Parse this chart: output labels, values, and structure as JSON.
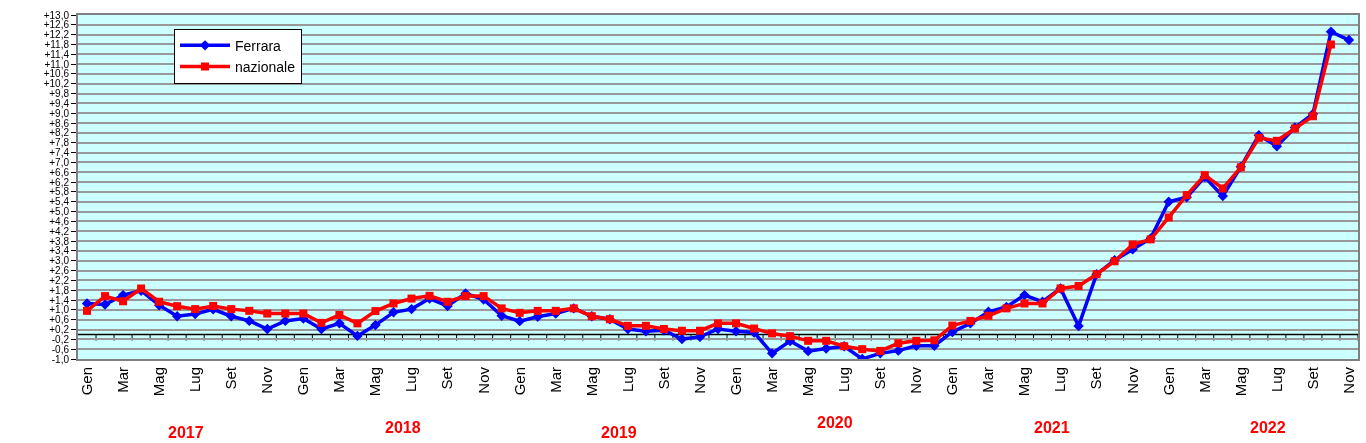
{
  "chart_data": {
    "type": "line",
    "categories": [
      "Gen",
      null,
      "Mar",
      null,
      "Mag",
      null,
      "Lug",
      null,
      "Set",
      null,
      "Nov",
      null,
      "Gen",
      null,
      "Mar",
      null,
      "Mag",
      null,
      "Lug",
      null,
      "Set",
      null,
      "Nov",
      null,
      "Gen",
      null,
      "Mar",
      null,
      "Mag",
      null,
      "Lug",
      null,
      "Set",
      null,
      "Nov",
      null,
      "Gen",
      null,
      "Mar",
      null,
      "Mag",
      null,
      "Lug",
      null,
      "Set",
      null,
      "Nov",
      null,
      "Gen",
      null,
      "Mar",
      null,
      "Mag",
      null,
      "Lug",
      null,
      "Set",
      null,
      "Nov",
      null,
      "Gen",
      null,
      "Mar",
      null,
      "Mag",
      null,
      "Lug",
      null,
      "Set",
      null,
      "Nov"
    ],
    "series": [
      {
        "name": "Ferrara",
        "color": "#0000ff",
        "marker": "diamond",
        "values": [
          1.26,
          1.22,
          1.6,
          1.78,
          1.19,
          0.74,
          0.83,
          1.02,
          0.74,
          0.55,
          0.22,
          0.55,
          0.65,
          0.22,
          0.45,
          -0.06,
          0.38,
          0.9,
          1.03,
          1.46,
          1.16,
          1.67,
          1.42,
          0.76,
          0.54,
          0.72,
          0.85,
          1.06,
          0.74,
          0.62,
          0.22,
          0.13,
          0.17,
          -0.19,
          -0.1,
          0.22,
          0.13,
          0.08,
          -0.77,
          -0.27,
          -0.68,
          -0.57,
          -0.48,
          -1.0,
          -0.77,
          -0.66,
          -0.46,
          -0.46,
          0.1,
          0.45,
          0.92,
          1.12,
          1.6,
          1.33,
          1.87,
          0.34,
          2.45,
          3.02,
          3.46,
          3.91,
          5.4,
          5.58,
          6.41,
          5.63,
          6.82,
          8.11,
          7.66,
          8.42,
          8.97,
          12.32,
          11.98
        ]
      },
      {
        "name": "nazionale",
        "color": "#ff0000",
        "marker": "square",
        "values": [
          0.96,
          1.56,
          1.35,
          1.87,
          1.33,
          1.15,
          1.03,
          1.16,
          1.03,
          0.96,
          0.85,
          0.85,
          0.85,
          0.47,
          0.79,
          0.45,
          0.95,
          1.26,
          1.46,
          1.57,
          1.33,
          1.56,
          1.56,
          1.06,
          0.88,
          0.96,
          0.96,
          1.06,
          0.74,
          0.62,
          0.35,
          0.35,
          0.22,
          0.15,
          0.15,
          0.45,
          0.45,
          0.24,
          0.04,
          -0.07,
          -0.26,
          -0.26,
          -0.48,
          -0.6,
          -0.67,
          -0.36,
          -0.26,
          -0.24,
          0.36,
          0.55,
          0.76,
          1.06,
          1.26,
          1.26,
          1.87,
          1.97,
          2.45,
          2.98,
          3.66,
          3.87,
          4.76,
          5.67,
          6.48,
          5.94,
          6.8,
          8.0,
          7.88,
          8.38,
          8.88,
          11.8,
          null
        ]
      }
    ],
    "ylim": [
      -1.0,
      13.0
    ],
    "yticks": [
      {
        "value": -1.0,
        "label": "-1,0"
      },
      {
        "value": -0.6,
        "label": "-0,6"
      },
      {
        "value": -0.2,
        "label": "-0,2"
      },
      {
        "value": 0.2,
        "label": "+0,2"
      },
      {
        "value": 0.6,
        "label": "+0,6"
      },
      {
        "value": 1.0,
        "label": "+1,0"
      },
      {
        "value": 1.4,
        "label": "+1,4"
      },
      {
        "value": 1.8,
        "label": "+1,8"
      },
      {
        "value": 2.2,
        "label": "+2,2"
      },
      {
        "value": 2.6,
        "label": "+2,6"
      },
      {
        "value": 3.0,
        "label": "+3,0"
      },
      {
        "value": 3.4,
        "label": "+3,4"
      },
      {
        "value": 3.8,
        "label": "+3,8"
      },
      {
        "value": 4.2,
        "label": "+4,2"
      },
      {
        "value": 4.6,
        "label": "+4,6"
      },
      {
        "value": 5.0,
        "label": "+5,0"
      },
      {
        "value": 5.4,
        "label": "+5,4"
      },
      {
        "value": 5.8,
        "label": "+5,8"
      },
      {
        "value": 6.2,
        "label": "+6,2"
      },
      {
        "value": 6.6,
        "label": "+6,6"
      },
      {
        "value": 7.0,
        "label": "+7,0"
      },
      {
        "value": 7.4,
        "label": "+7,4"
      },
      {
        "value": 7.8,
        "label": "+7,8"
      },
      {
        "value": 8.2,
        "label": "+8,2"
      },
      {
        "value": 8.6,
        "label": "+8,6"
      },
      {
        "value": 9.0,
        "label": "+9,0"
      },
      {
        "value": 9.4,
        "label": "+9,4"
      },
      {
        "value": 9.8,
        "label": "+9,8"
      },
      {
        "value": 10.2,
        "label": "+10,2"
      },
      {
        "value": 10.6,
        "label": "+10,6"
      },
      {
        "value": 11.0,
        "label": "+11,0"
      },
      {
        "value": 11.4,
        "label": "+11,4"
      },
      {
        "value": 11.8,
        "label": "+11,8"
      },
      {
        "value": 12.2,
        "label": "+12,2"
      },
      {
        "value": 12.6,
        "label": "+12,6"
      },
      {
        "value": 13.0,
        "label": "+13,0"
      }
    ],
    "grid": "y",
    "legend": "top left",
    "ref_lines": [
      {
        "axis": "y",
        "value": 0,
        "color": "#000000"
      }
    ],
    "annotations": [
      "2017",
      "2018",
      "2019",
      "2020",
      "2021",
      "2022"
    ]
  }
}
